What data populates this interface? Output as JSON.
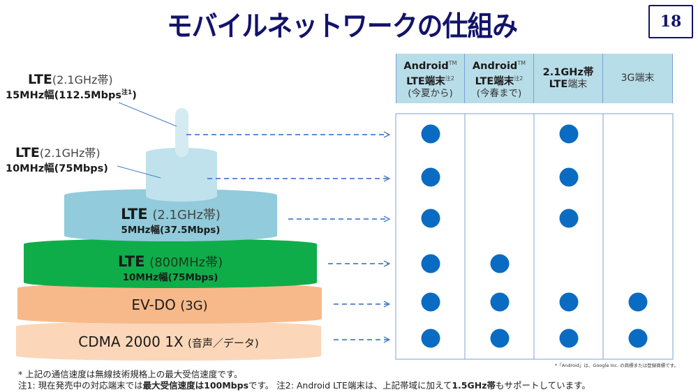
{
  "title": "モバイルネットワークの仕組み",
  "page_number": "18",
  "colors": {
    "title": "#13136b",
    "tier_lte_15": "#d5ebf2",
    "tier_lte_10": "#bfe2ec",
    "tier_lte_5": "#92cbdb",
    "tier_lte_800": "#0fad4a",
    "tier_evdo": "#f7b98a",
    "tier_cdma": "#fbd6b8",
    "arrow": "#4a7cc9",
    "dot": "#0a6bc2",
    "header_bg": "#b7dde8",
    "grid": "#7d9fd6"
  },
  "tiers": [
    {
      "id": "lte-15mhz",
      "name": "LTE",
      "band": "(2.1GHz帯)",
      "bandwidth": "15MHz幅(112.5Mbps",
      "note": "注1",
      "close": ")"
    },
    {
      "id": "lte-10mhz",
      "name": "LTE",
      "band": "(2.1GHz帯)",
      "bandwidth": "10MHz幅(75Mbps)"
    },
    {
      "id": "lte-5mhz",
      "name": "LTE",
      "band": "(2.1GHz帯)",
      "bandwidth": "5MHz幅(37.5Mbps)"
    },
    {
      "id": "lte-800",
      "name": "LTE",
      "band": "(800MHz帯)",
      "bandwidth": "10MHz幅(75Mbps)"
    },
    {
      "id": "evdo",
      "name": "EV-DO",
      "band": "(3G)"
    },
    {
      "id": "cdma",
      "name": "CDMA 2000 1X",
      "band": "(音声／データ)"
    }
  ],
  "table": {
    "columns": [
      {
        "line1": "Android",
        "tm": "TM",
        "line2": "LTE端末",
        "note": "注2",
        "line3": "(今夏から)"
      },
      {
        "line1": "Android",
        "tm": "TM",
        "line2": "LTE端末",
        "note": "注2",
        "line3": "(今春まで)"
      },
      {
        "line1": "2.1GHz帯",
        "line2a": "LTE",
        "line2b": "端末"
      },
      {
        "line1": "3G端末"
      }
    ],
    "support": [
      [
        true,
        false,
        true,
        false
      ],
      [
        true,
        false,
        true,
        false
      ],
      [
        true,
        false,
        true,
        false
      ],
      [
        true,
        true,
        false,
        false
      ],
      [
        true,
        true,
        true,
        true
      ],
      [
        true,
        true,
        true,
        true
      ]
    ]
  },
  "footnotes": {
    "line1": "* 上記の通信速度は無線技術規格上の最大受信速度です。",
    "line2_a": "注1: 現在発売中の対応端末では",
    "line2_b": "最大受信速度は100Mbps",
    "line2_c": "です。 注2: Android  LTE端末は、上記帯域に加えて",
    "line2_d": "1.5GHz帯",
    "line2_e": "もサポートしています。",
    "trademark": "*「Android」は、Google Inc. の商標または登録商標です。"
  }
}
